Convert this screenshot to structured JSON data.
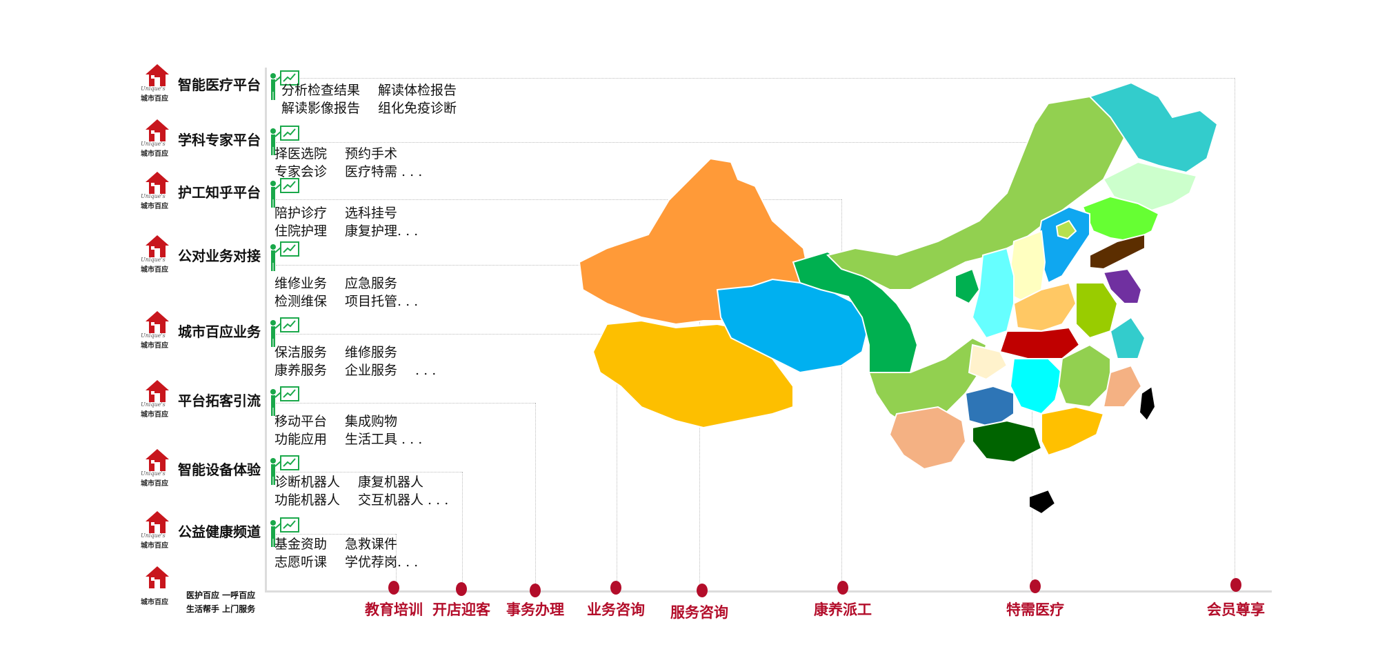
{
  "brand": {
    "watermark": "Unique's",
    "name": "城市百应"
  },
  "platforms": [
    {
      "title": "智能医疗平台",
      "services": [
        [
          "分析检查结果",
          "解读体检报告"
        ],
        [
          "解读影像报告",
          "组化免疫诊断"
        ]
      ]
    },
    {
      "title": "学科专家平台",
      "services": [
        [
          "择医选院",
          "预约手术"
        ],
        [
          "专家会诊",
          "医疗特需 . . ."
        ]
      ]
    },
    {
      "title": "护工知乎平台",
      "services": [
        [
          "陪护诊疗",
          "选科挂号"
        ],
        [
          "住院护理",
          "康复护理. . ."
        ]
      ]
    },
    {
      "title": "公对业务对接",
      "services": [
        [
          "维修业务",
          "应急服务"
        ],
        [
          "检测维保",
          "项目托管. . ."
        ]
      ]
    },
    {
      "title": "城市百应业务",
      "services": [
        [
          "保洁服务",
          "维修服务"
        ],
        [
          "康养服务",
          "企业服务",
          ". . ."
        ]
      ]
    },
    {
      "title": "平台拓客引流",
      "services": [
        [
          "移动平台",
          "集成购物"
        ],
        [
          "功能应用",
          "生活工具 . . ."
        ]
      ]
    },
    {
      "title": "智能设备体验",
      "services": [
        [
          "诊断机器人",
          "康复机器人"
        ],
        [
          "功能机器人",
          "交互机器人 . . ."
        ]
      ]
    },
    {
      "title": "公益健康频道",
      "services": [
        [
          "基金资助",
          "急救课件"
        ],
        [
          "志愿听课",
          "学优荐岗. . ."
        ]
      ]
    }
  ],
  "footer": {
    "line1": "医护百应  一呼百应",
    "line2": "生活帮手  上门服务"
  },
  "categories": [
    "教育培训",
    "开店迎客",
    "事务办理",
    "业务咨询",
    "服务咨询",
    "康养派工",
    "特需医疗",
    "会员尊享"
  ],
  "colors": {
    "accent": "#b30d2a",
    "green_icon": "#1aa84a",
    "house": "#c8161d"
  }
}
